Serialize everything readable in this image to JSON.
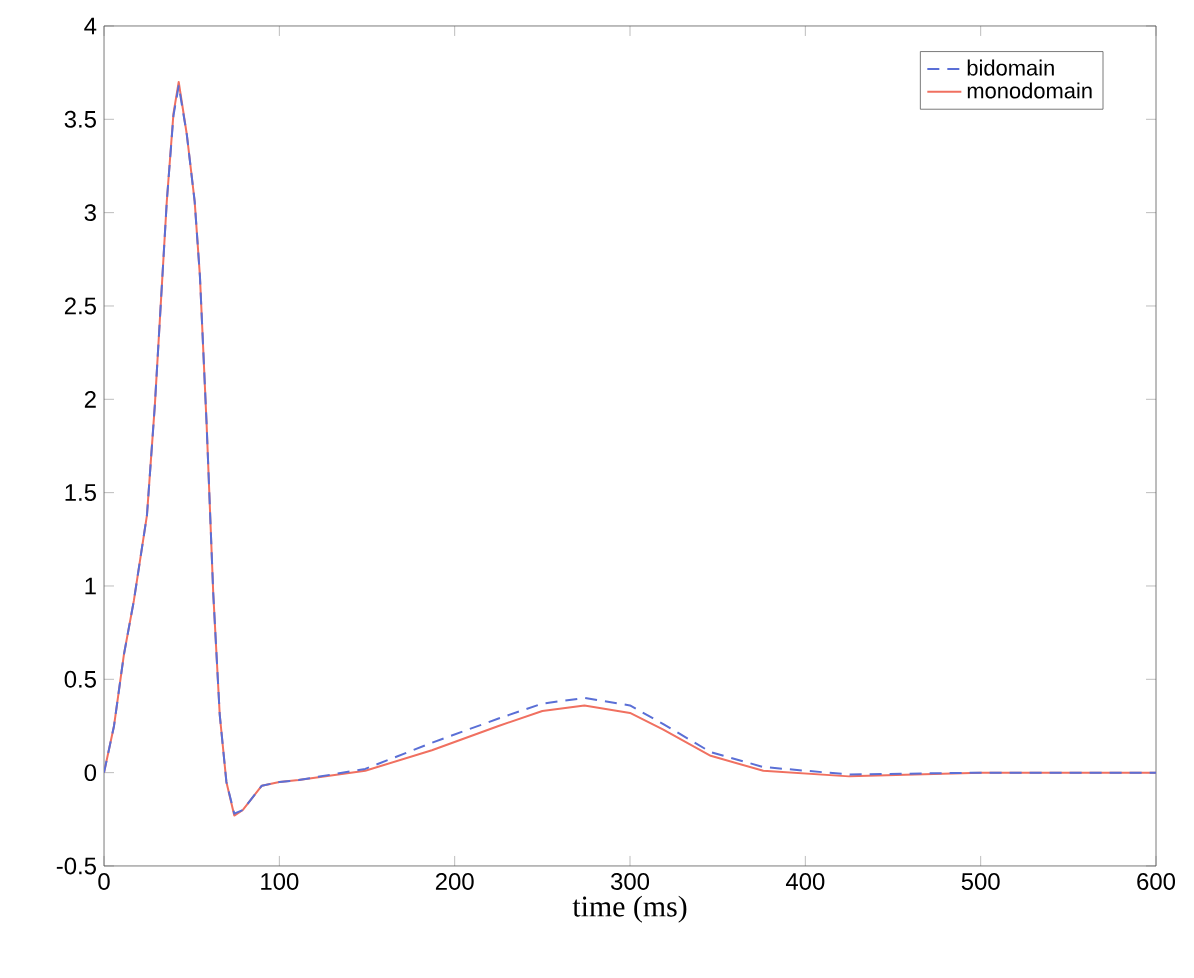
{
  "chart_data": {
    "type": "line",
    "xlabel": "time (ms)",
    "x": [
      0,
      5.7,
      11.3,
      17,
      24.5,
      29,
      35.8,
      39.6,
      42.6,
      47.2,
      51.7,
      54.7,
      58.5,
      62.3,
      66,
      69.8,
      74.3,
      79.2,
      90,
      100,
      111,
      149,
      187,
      225,
      250,
      274,
      300,
      319,
      346,
      376,
      425,
      500,
      600
    ],
    "series": [
      {
        "name": "bidomain",
        "color": "#5a6fd6",
        "line_style": "dashed",
        "values": [
          0,
          0.25,
          0.63,
          0.92,
          1.38,
          1.97,
          3.06,
          3.52,
          3.68,
          3.42,
          3.06,
          2.66,
          1.87,
          0.96,
          0.31,
          -0.05,
          -0.22,
          -0.2,
          -0.07,
          -0.05,
          -0.04,
          0.02,
          0.16,
          0.29,
          0.37,
          0.4,
          0.36,
          0.26,
          0.11,
          0.03,
          -0.01,
          0,
          0
        ]
      },
      {
        "name": "monodomain",
        "color": "#f07060",
        "line_style": "solid",
        "values": [
          0,
          0.25,
          0.63,
          0.92,
          1.38,
          1.97,
          3.06,
          3.53,
          3.7,
          3.42,
          3.06,
          2.66,
          1.87,
          0.96,
          0.31,
          -0.05,
          -0.23,
          -0.2,
          -0.07,
          -0.05,
          -0.04,
          0.01,
          0.12,
          0.25,
          0.33,
          0.36,
          0.32,
          0.23,
          0.09,
          0.01,
          -0.02,
          0,
          0
        ]
      }
    ],
    "xlim": [
      0,
      600
    ],
    "xticks": [
      0,
      100,
      200,
      300,
      400,
      500,
      600
    ],
    "ylim": [
      -0.5,
      4
    ],
    "yticks": [
      -0.5,
      0,
      0.5,
      1,
      1.5,
      2,
      2.5,
      3,
      3.5,
      4
    ],
    "grid": false,
    "legend": "top right"
  }
}
